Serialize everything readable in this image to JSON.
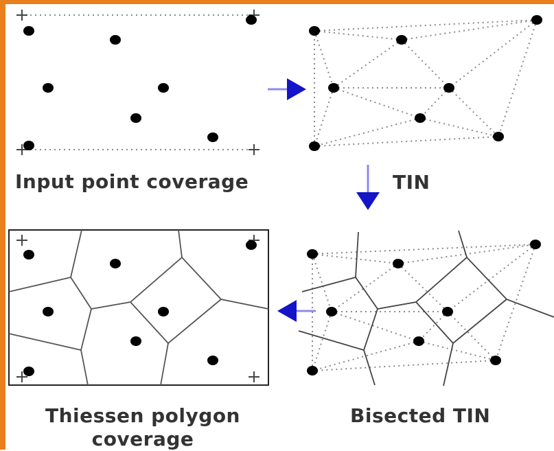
{
  "captions": {
    "input_point_coverage": "Input point coverage",
    "tin": "TIN",
    "bisected_tin": "Bisected TIN",
    "thiessen_polygon_coverage": "Thiessen polygon coverage"
  },
  "colors": {
    "border": "#e8801e",
    "arrow": "#1414c8",
    "arrow_shaft": "#8c8ce6",
    "points": "#000000",
    "lines": "#555555",
    "text": "#333333"
  }
}
